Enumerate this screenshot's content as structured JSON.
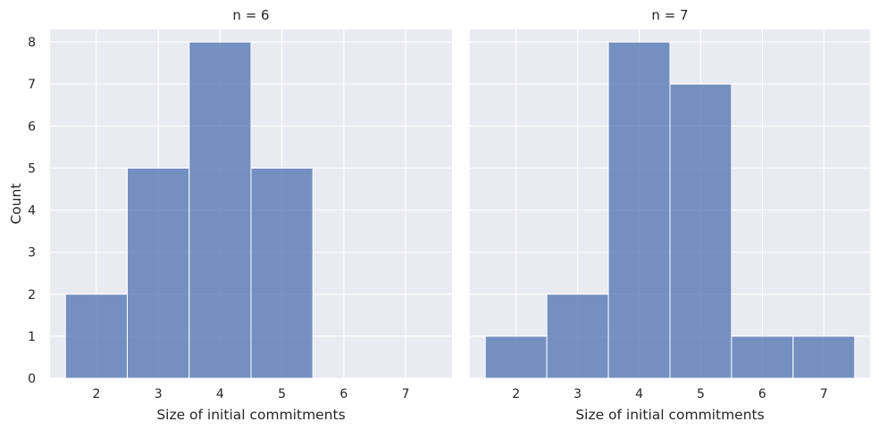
{
  "chart_data": [
    {
      "type": "bar",
      "title": "n = 6",
      "xlabel": "Size of initial commitments",
      "ylabel": "Count",
      "categories": [
        2,
        3,
        4,
        5,
        6,
        7
      ],
      "values": [
        2,
        5,
        8,
        5,
        0,
        0
      ],
      "xlim": [
        1.5,
        7.5
      ],
      "ylim": [
        0,
        8
      ],
      "yticks": [
        0,
        1,
        2,
        3,
        4,
        5,
        6,
        7,
        8
      ],
      "grid": true,
      "color": "#4c72b0"
    },
    {
      "type": "bar",
      "title": "n = 7",
      "xlabel": "Size of initial commitments",
      "ylabel": "",
      "categories": [
        2,
        3,
        4,
        5,
        6,
        7
      ],
      "values": [
        1,
        2,
        8,
        7,
        1,
        1
      ],
      "xlim": [
        1.5,
        7.5
      ],
      "ylim": [
        0,
        8
      ],
      "yticks": [
        0,
        1,
        2,
        3,
        4,
        5,
        6,
        7,
        8
      ],
      "grid": true,
      "color": "#4c72b0"
    }
  ]
}
